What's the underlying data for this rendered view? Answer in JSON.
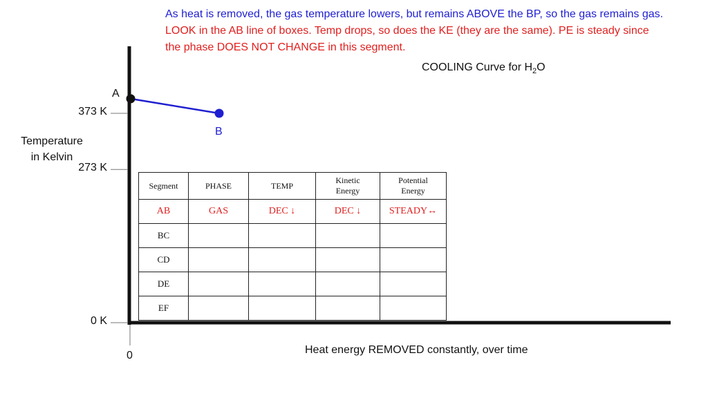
{
  "notes": {
    "line1": "As heat is removed, the gas temperature lowers, but remains ABOVE the BP, so the gas remains gas.",
    "line2": "LOOK in the AB line of boxes.    Temp drops, so does the KE (they are the same).  PE is steady since",
    "line3": "the phase DOES NOT CHANGE in this segment."
  },
  "chart_data": {
    "type": "line",
    "title_main": "COOLING Curve for H",
    "title_sub": "2",
    "title_end": "O",
    "ylabel_line1": "Temperature",
    "ylabel_line2": "in Kelvin",
    "xlabel": "Heat energy REMOVED constantly, over time",
    "x_origin_label": "0",
    "y_ticks": [
      {
        "label": "373 K",
        "value": 373
      },
      {
        "label": "273 K",
        "value": 273
      },
      {
        "label": "0 K",
        "value": 0
      }
    ],
    "ylim": [
      0,
      400
    ],
    "points": [
      {
        "label": "A",
        "x": 0,
        "y": 399
      },
      {
        "label": "B",
        "x": 1,
        "y": 373
      }
    ],
    "colors": {
      "segment_AB": "#1f1fd1",
      "point_A": "#111111",
      "point_B": "#1f1fd1",
      "axes": "#111111"
    }
  },
  "table": {
    "headers": [
      "Segment",
      "PHASE",
      "TEMP",
      "Kinetic\nEnergy",
      "Potential\nEnergy"
    ],
    "rows": [
      [
        "AB",
        "GAS",
        "DEC ↓",
        "DEC ↓",
        "STEADY↔"
      ],
      [
        "BC",
        "",
        "",
        "",
        ""
      ],
      [
        "CD",
        "",
        "",
        "",
        ""
      ],
      [
        "DE",
        "",
        "",
        "",
        ""
      ],
      [
        "EF",
        "",
        "",
        "",
        ""
      ]
    ]
  }
}
